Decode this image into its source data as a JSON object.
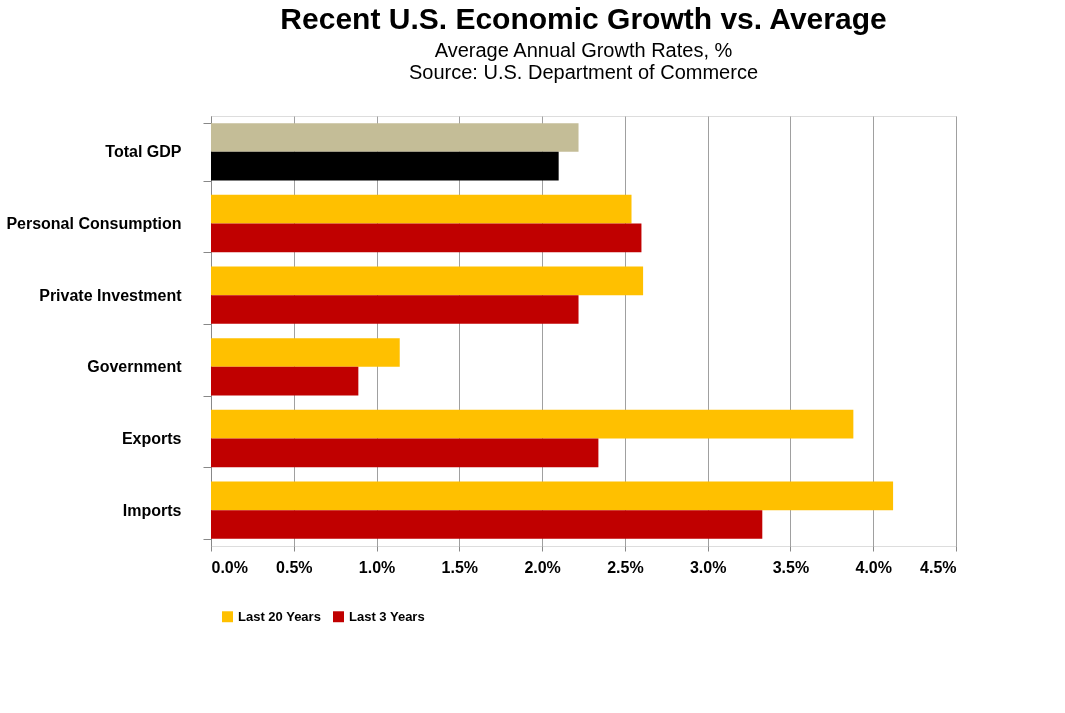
{
  "chart_data": {
    "type": "bar",
    "orientation": "horizontal",
    "title": "Recent U.S. Economic Growth vs. Average",
    "subtitle": "Average Annual Growth Rates, %",
    "annotations": [
      "Source:  U.S. Department of Commerce"
    ],
    "categories": [
      "Total GDP",
      "Personal Consumption",
      "Private Investment",
      "Government",
      "Exports",
      "Imports"
    ],
    "series": [
      {
        "name": "Last 20 Years",
        "color": "#ffc000",
        "colors": [
          "#c4bd97",
          "#ffc000",
          "#ffc000",
          "#ffc000",
          "#ffc000",
          "#ffc000"
        ],
        "values": [
          2.22,
          2.54,
          2.61,
          1.14,
          3.88,
          4.12
        ]
      },
      {
        "name": "Last 3 Years",
        "color": "#c00000",
        "colors": [
          "#000000",
          "#c00000",
          "#c00000",
          "#c00000",
          "#c00000",
          "#c00000"
        ],
        "values": [
          2.1,
          2.6,
          2.22,
          0.89,
          2.34,
          3.33
        ]
      }
    ],
    "xlim": [
      0,
      4.5
    ],
    "xticks": [
      {
        "value": 0,
        "label": "0.0%"
      },
      {
        "value": 0.5,
        "label": "0.5%"
      },
      {
        "value": 1,
        "label": "1.0%"
      },
      {
        "value": 1.5,
        "label": "1.5%"
      },
      {
        "value": 2,
        "label": "2.0%"
      },
      {
        "value": 2.5,
        "label": "2.5%"
      },
      {
        "value": 3,
        "label": "3.0%"
      },
      {
        "value": 3.5,
        "label": "3.5%"
      },
      {
        "value": 4,
        "label": "4.0%"
      },
      {
        "value": 4.5,
        "label": "4.5%"
      }
    ],
    "grid": "x",
    "legend": "bottom"
  }
}
